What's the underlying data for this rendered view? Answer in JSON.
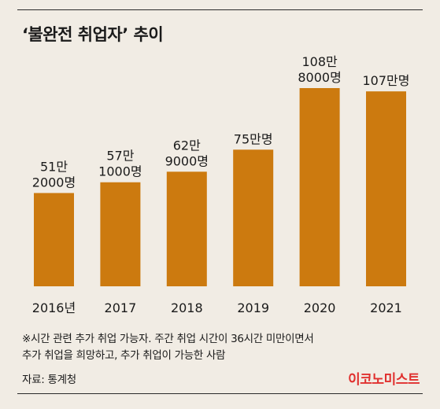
{
  "title": "‘불완전 취업자’ 추이",
  "note_line1": "※시간 관련 추가 취업 가능자. 주간 취업 시간이 36시간 미만이면서",
  "note_line2": "추가 취업을 희망하고, 추가 취업이 가능한 사람",
  "source": "자료: 통계청",
  "brand": "이코노미스트",
  "colors": {
    "bar": "#cc7a0f",
    "background": "#f1ece4",
    "brand": "#e0302e"
  },
  "chart_data": {
    "type": "bar",
    "title": "‘불완전 취업자’ 추이",
    "categories": [
      "2016년",
      "2017",
      "2018",
      "2019",
      "2020",
      "2021"
    ],
    "values": [
      512000,
      571000,
      629000,
      750000,
      1088000,
      1070000
    ],
    "value_labels": [
      [
        "51만",
        "2000명"
      ],
      [
        "57만",
        "1000명"
      ],
      [
        "62만",
        "9000명"
      ],
      [
        "75만명"
      ],
      [
        "108만",
        "8000명"
      ],
      [
        "107만명"
      ]
    ],
    "ylim": [
      0,
      1088000
    ],
    "grid": false,
    "legend": "none",
    "xlabel": "",
    "ylabel": ""
  }
}
